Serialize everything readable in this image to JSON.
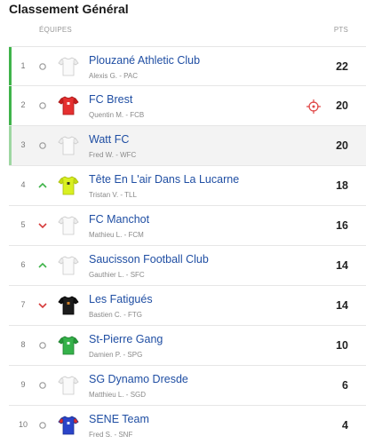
{
  "header": {
    "title": "Classement Général",
    "col_teams": "ÉQUIPES",
    "col_points": "PTS"
  },
  "standings": [
    {
      "rank": "1",
      "movement": "same",
      "team": "Plouzané Athletic Club",
      "manager": "Alexis G. - PAC",
      "points": "22",
      "jersey": "white",
      "highlight": "strong",
      "shaded": false,
      "captain_icon": false
    },
    {
      "rank": "2",
      "movement": "same",
      "team": "FC Brest",
      "manager": "Quentin M. - FCB",
      "points": "20",
      "jersey": "red",
      "highlight": "strong",
      "shaded": false,
      "captain_icon": true
    },
    {
      "rank": "3",
      "movement": "same",
      "team": "Watt FC",
      "manager": "Fred W. - WFC",
      "points": "20",
      "jersey": "white",
      "highlight": "light",
      "shaded": true,
      "captain_icon": false
    },
    {
      "rank": "4",
      "movement": "up",
      "team": "Tête En L'air Dans La Lucarne",
      "manager": "Tristan V. - TLL",
      "points": "18",
      "jersey": "yellow",
      "highlight": "none",
      "shaded": false,
      "captain_icon": false
    },
    {
      "rank": "5",
      "movement": "down",
      "team": "FC Manchot",
      "manager": "Mathieu L. - FCM",
      "points": "16",
      "jersey": "white",
      "highlight": "none",
      "shaded": false,
      "captain_icon": false
    },
    {
      "rank": "6",
      "movement": "up",
      "team": "Saucisson Football Club",
      "manager": "Gauthier L. - SFC",
      "points": "14",
      "jersey": "white",
      "highlight": "none",
      "shaded": false,
      "captain_icon": false
    },
    {
      "rank": "7",
      "movement": "down",
      "team": "Les Fatigués",
      "manager": "Bastien C. - FTG",
      "points": "14",
      "jersey": "black",
      "highlight": "none",
      "shaded": false,
      "captain_icon": false
    },
    {
      "rank": "8",
      "movement": "same",
      "team": "St-Pierre Gang",
      "manager": "Damien P. - SPG",
      "points": "10",
      "jersey": "green",
      "highlight": "none",
      "shaded": false,
      "captain_icon": false
    },
    {
      "rank": "9",
      "movement": "same",
      "team": "SG Dynamo Dresde",
      "manager": "Matthieu L. - SGD",
      "points": "6",
      "jersey": "white",
      "highlight": "none",
      "shaded": false,
      "captain_icon": false
    },
    {
      "rank": "10",
      "movement": "same",
      "team": "SENE Team",
      "manager": "Fred S. - SNF",
      "points": "4",
      "jersey": "blue-red",
      "highlight": "none",
      "shaded": false,
      "captain_icon": false
    }
  ],
  "colors": {
    "link": "#1f4ea3",
    "up": "#3fb34a",
    "down": "#d63a3a",
    "qualify_strong": "#3fb34a",
    "qualify_light": "#9ed7a2"
  }
}
